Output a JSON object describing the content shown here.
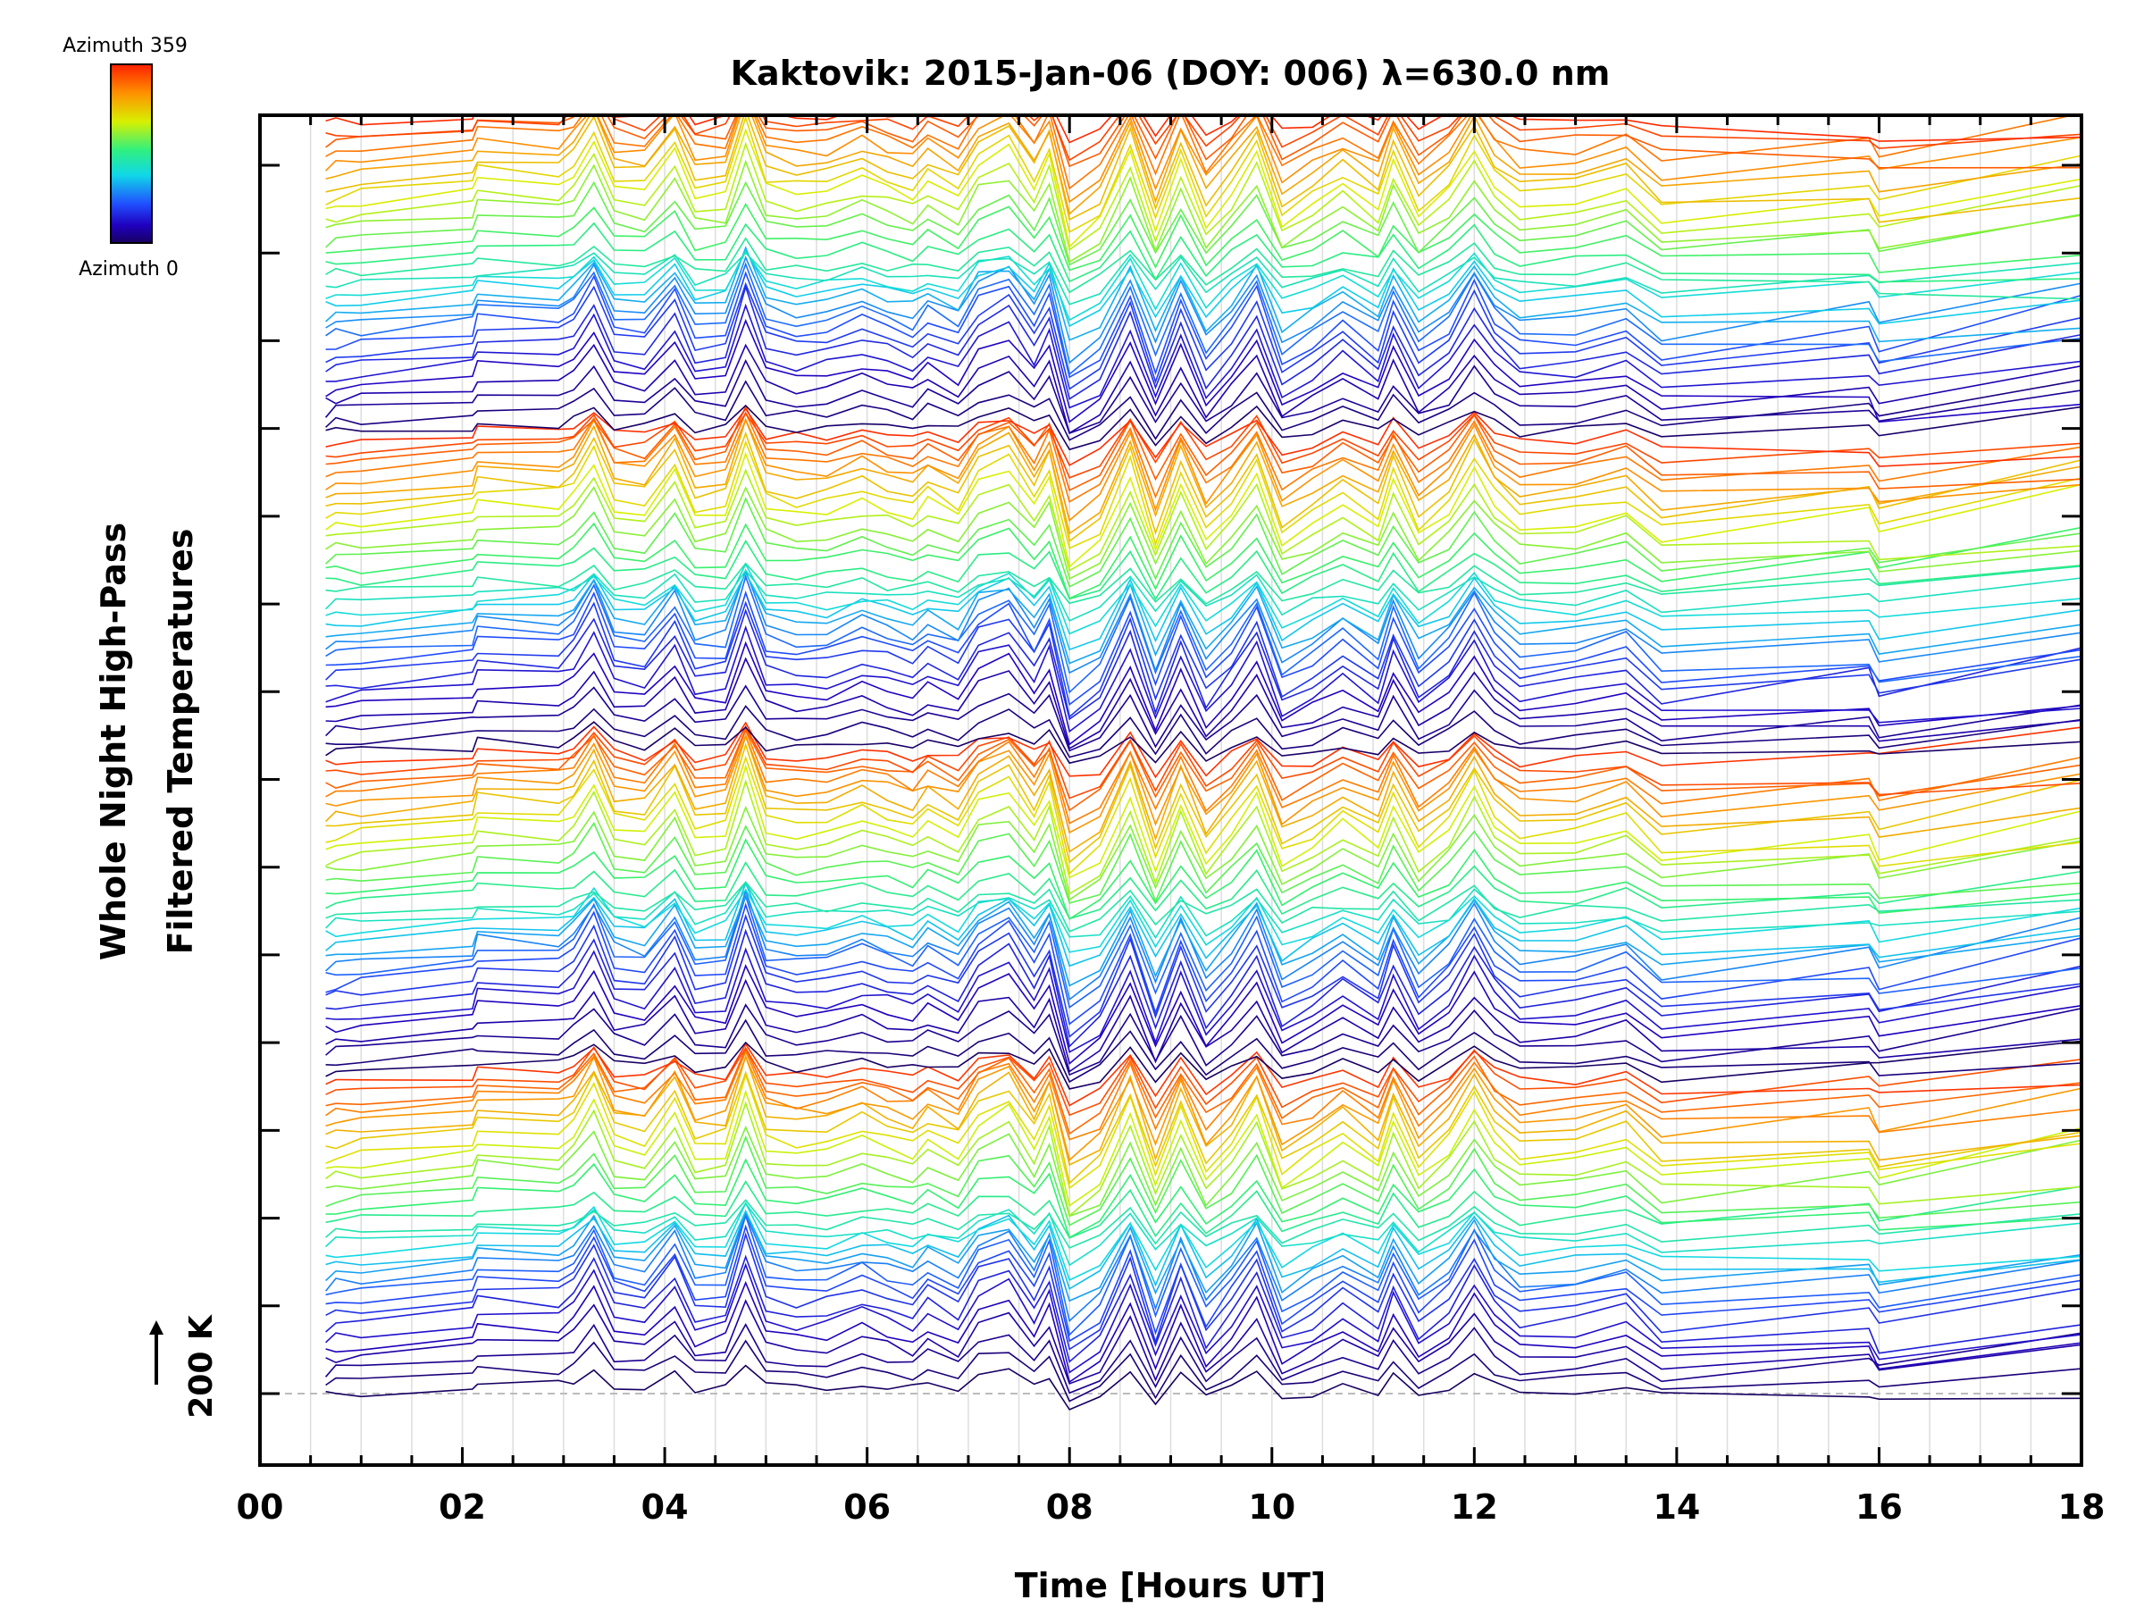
{
  "chart_data": {
    "type": "line",
    "title": "Kaktovik: 2015-Jan-06 (DOY: 006) λ=630.0 nm",
    "xlabel": "Time [Hours UT]",
    "ylabel_line1": "Whole Night High-Pass",
    "ylabel_line2": "Filtered Temperatures",
    "xlim": [
      0,
      18
    ],
    "x_tick_labels": [
      "00",
      "02",
      "04",
      "06",
      "08",
      "10",
      "12",
      "14",
      "16",
      "18"
    ],
    "x_tick_values": [
      0,
      2,
      4,
      6,
      8,
      10,
      12,
      14,
      16,
      18
    ],
    "y_ticks_count": 15,
    "reference_label": "200 K",
    "colorbar": {
      "top_label": "Azimuth  359",
      "bottom_label": "Azimuth  0",
      "colors": [
        "#ff2000",
        "#ff8a00",
        "#d9f000",
        "#30f070",
        "#10d8e8",
        "#2050ff",
        "#2000c0",
        "#180060"
      ]
    },
    "series_count": 120,
    "sample_times": [
      0.65,
      0.75,
      1.0,
      2.1,
      2.15,
      2.95,
      3.1,
      3.3,
      3.5,
      3.8,
      4.1,
      4.3,
      4.6,
      4.8,
      5.0,
      5.3,
      5.6,
      5.95,
      6.2,
      6.45,
      6.6,
      6.9,
      7.1,
      7.4,
      7.65,
      7.8,
      8.0,
      8.3,
      8.6,
      8.85,
      9.1,
      9.35,
      9.6,
      9.85,
      10.1,
      10.4,
      10.7,
      11.05,
      11.2,
      11.45,
      11.75,
      12.0,
      12.2,
      12.45,
      13.0,
      13.5,
      13.85,
      15.9,
      16.0,
      18.0
    ],
    "common_signal": [
      0,
      0.2,
      0.3,
      0.8,
      1.4,
      1.2,
      1.7,
      3.2,
      1.0,
      0.8,
      2.6,
      0.5,
      0.7,
      3.6,
      1.0,
      0.7,
      0.8,
      1.4,
      1.0,
      0.6,
      1.3,
      0.6,
      2.2,
      2.8,
      1.0,
      2.4,
      -1.5,
      -0.5,
      2.6,
      -0.9,
      2.2,
      -0.6,
      0.8,
      2.6,
      -0.6,
      0.2,
      1.2,
      0.1,
      2.2,
      -0.3,
      0.9,
      2.9,
      1.2,
      0.2,
      0.4,
      1.0,
      -0.4,
      0.3,
      -0.6,
      0.9
    ]
  }
}
